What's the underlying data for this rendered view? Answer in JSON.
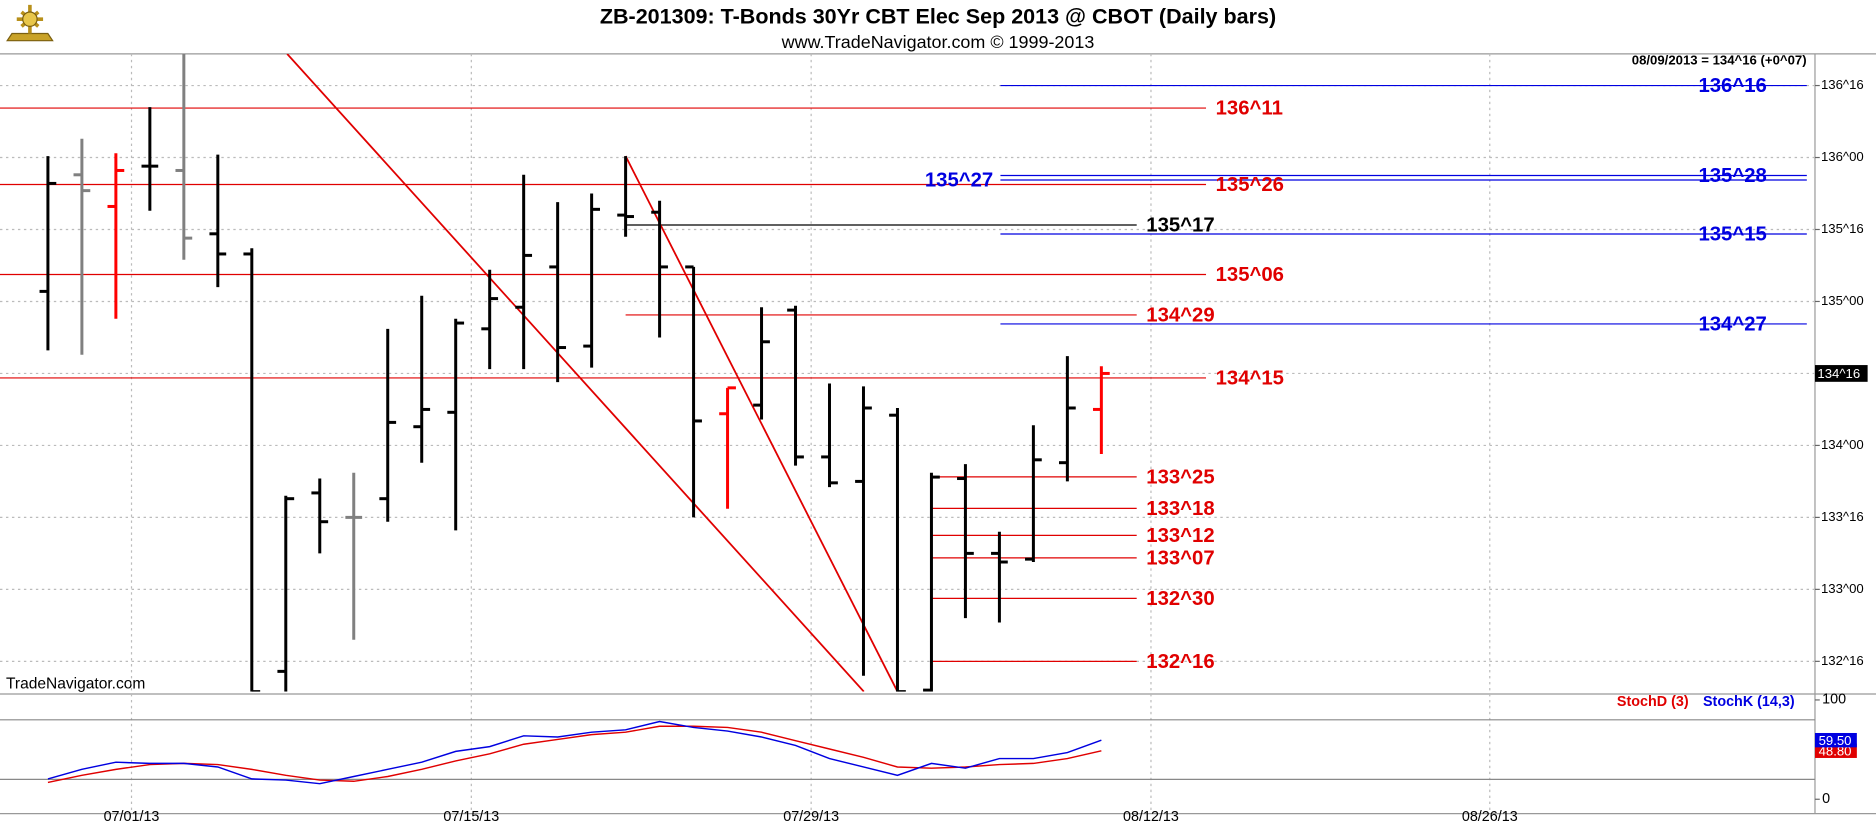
{
  "chart_data": [
    {
      "type": "ohlc",
      "title": "ZB-201309:  T-Bonds 30Yr CBT Elec Sep 2013 @ CBOT  (Daily bars)",
      "subtitle": "www.TradeNavigator.com © 1999-2013",
      "info": "08/09/2013 = 134^16 (+0^07)",
      "watermark": "TradeNavigator.com",
      "open": [
        135.07,
        135.88,
        135.66,
        135.94,
        135.91,
        135.47,
        135.33,
        132.43,
        133.67,
        133.5,
        133.63,
        134.13,
        134.23,
        134.81,
        134.96,
        135.24,
        134.69,
        135.6,
        135.62,
        135.24,
        134.22,
        134.28,
        134.94,
        133.92,
        133.75,
        134.21,
        132.3,
        133.77,
        133.25,
        133.21,
        133.88,
        134.25
      ],
      "high": [
        136.01,
        136.13,
        136.03,
        136.35,
        136.72,
        136.02,
        135.37,
        133.65,
        133.77,
        133.81,
        134.81,
        135.04,
        134.88,
        135.22,
        135.88,
        135.69,
        135.75,
        136.01,
        135.7,
        135.24,
        134.4,
        134.96,
        134.97,
        134.43,
        134.41,
        134.26,
        133.81,
        133.87,
        133.4,
        134.14,
        134.62,
        134.55
      ],
      "low": [
        134.66,
        134.63,
        134.88,
        135.63,
        135.29,
        135.1,
        132.29,
        132.29,
        133.25,
        132.65,
        133.47,
        133.88,
        133.41,
        134.53,
        134.53,
        134.44,
        134.54,
        135.45,
        134.75,
        133.5,
        133.56,
        134.18,
        133.86,
        133.71,
        132.4,
        132.29,
        132.29,
        132.8,
        132.77,
        133.19,
        133.75,
        133.94
      ],
      "close": [
        135.82,
        135.77,
        135.91,
        135.94,
        135.44,
        135.33,
        132.29,
        133.63,
        133.47,
        133.5,
        134.16,
        134.25,
        134.85,
        135.02,
        135.32,
        134.68,
        135.64,
        135.59,
        135.24,
        134.17,
        134.4,
        134.72,
        133.92,
        133.74,
        134.26,
        132.29,
        133.78,
        133.25,
        133.19,
        133.9,
        134.26,
        134.5
      ],
      "bar_colors": [
        "#000000",
        "#808080",
        "#ff0000",
        "#000000",
        "#808080",
        "#000000",
        "#000000",
        "#000000",
        "#000000",
        "#808080",
        "#000000",
        "#000000",
        "#000000",
        "#000000",
        "#000000",
        "#000000",
        "#000000",
        "#000000",
        "#000000",
        "#000000",
        "#ff0000",
        "#000000",
        "#000000",
        "#000000",
        "#000000",
        "#000000",
        "#000000",
        "#000000",
        "#000000",
        "#000000",
        "#000000",
        "#ff0000"
      ],
      "ylim": [
        132.29,
        136.72
      ],
      "yticks": [
        {
          "value": 136.5,
          "label": "136^16"
        },
        {
          "value": 136,
          "label": "136^00"
        },
        {
          "value": 135.5,
          "label": "135^16"
        },
        {
          "value": 135,
          "label": "135^00"
        },
        {
          "value": 134.5,
          "label": "134^16"
        },
        {
          "value": 134,
          "label": "134^00"
        },
        {
          "value": 133.5,
          "label": "133^16"
        },
        {
          "value": 133,
          "label": "133^00"
        },
        {
          "value": 132.5,
          "label": "132^16"
        }
      ],
      "grid": true,
      "last_price": {
        "value": 134.5,
        "label": "134^16"
      },
      "levels": [
        {
          "value": 136.34375,
          "label": "136^11",
          "color": "#e00000",
          "x_from": -1.41,
          "x_to": 34.08
        },
        {
          "value": 135.8125,
          "label": "135^26",
          "color": "#e00000",
          "x_from": -1.41,
          "x_to": 34.08
        },
        {
          "value": 135.1875,
          "label": "135^06",
          "color": "#e00000",
          "x_from": -1.41,
          "x_to": 34.08
        },
        {
          "value": 134.46875,
          "label": "134^15",
          "color": "#e00000",
          "x_from": -1.41,
          "x_to": 34.08
        },
        {
          "value": 135.53125,
          "label": "135^17",
          "color": "#000000",
          "x_from": 17,
          "x_to": 32.04
        },
        {
          "value": 134.90625,
          "label": "134^29",
          "color": "#e00000",
          "x_from": 17,
          "x_to": 32.04
        },
        {
          "value": 133.78125,
          "label": "133^25",
          "color": "#e00000",
          "x_from": 26.02,
          "x_to": 32.04
        },
        {
          "value": 133.5625,
          "label": "133^18",
          "color": "#e00000",
          "x_from": 26.02,
          "x_to": 32.04
        },
        {
          "value": 133.375,
          "label": "133^12",
          "color": "#e00000",
          "x_from": 26.02,
          "x_to": 32.04
        },
        {
          "value": 133.21875,
          "label": "133^07",
          "color": "#e00000",
          "x_from": 26.02,
          "x_to": 32.04
        },
        {
          "value": 132.9375,
          "label": "132^30",
          "color": "#e00000",
          "x_from": 26.02,
          "x_to": 32.04
        },
        {
          "value": 132.5,
          "label": "132^16",
          "color": "#e00000",
          "x_from": 26.02,
          "x_to": 32.04
        },
        {
          "value": 136.5,
          "label": "136^16",
          "color": "#0000e0",
          "x_from": 28.03,
          "x_to": 51.76
        },
        {
          "value": 135.875,
          "label": "135^28",
          "color": "#0000e0",
          "x_from": 28.03,
          "x_to": 51.76
        },
        {
          "value": 135.84375,
          "label": "135^27",
          "color": "#0000e0",
          "x_from": 28.03,
          "x_to": 51.76,
          "label_side": "left"
        },
        {
          "value": 135.46875,
          "label": "135^15",
          "color": "#0000e0",
          "x_from": 28.03,
          "x_to": 51.76
        },
        {
          "value": 134.84375,
          "label": "134^27",
          "color": "#0000e0",
          "x_from": 28.03,
          "x_to": 51.76
        }
      ],
      "trendlines": [
        {
          "x": [
            7.04,
            24.01
          ],
          "y": [
            136.72,
            132.29
          ],
          "color": "#e00000"
        },
        {
          "x": [
            17,
            25
          ],
          "y": [
            136.01,
            132.29
          ],
          "color": "#e00000"
        }
      ]
    },
    {
      "type": "line",
      "series": [
        {
          "name": "StochD (3)",
          "color": "#e00000",
          "last_label": "48.80",
          "values": [
            16.9,
            24.1,
            30.1,
            34.9,
            36.1,
            34.9,
            30.1,
            24.1,
            19.3,
            18.1,
            22.9,
            30.1,
            38.6,
            45.8,
            55.4,
            60.2,
            65.1,
            67.5,
            73.5,
            73.5,
            72.3,
            67.5,
            59,
            50.6,
            42.2,
            32.5,
            31.3,
            32.5,
            34.9,
            36.1,
            41,
            48.8
          ]
        },
        {
          "name": "StochK (14,3)",
          "color": "#0000e0",
          "last_label": "59.50",
          "values": [
            20.5,
            30.1,
            37.3,
            36.1,
            36.1,
            32.5,
            20.5,
            19.3,
            15.7,
            22.9,
            30.1,
            37.3,
            48.2,
            53,
            63.9,
            62.7,
            67.5,
            69.9,
            78.3,
            72.3,
            68.7,
            62.7,
            54.2,
            41,
            32.5,
            24.1,
            36.1,
            31.3,
            41,
            41,
            47,
            59.5
          ]
        }
      ],
      "ylim": [
        0,
        100
      ],
      "yticks": [
        0,
        100
      ],
      "levels": [
        20,
        80
      ],
      "xlim": [
        -1.41,
        52
      ],
      "xticks": [
        {
          "value": 2.46,
          "label": "07/01/13"
        },
        {
          "value": 12.46,
          "label": "07/15/13"
        },
        {
          "value": 22.46,
          "label": "07/29/13"
        },
        {
          "value": 32.46,
          "label": "08/12/13"
        },
        {
          "value": 42.43,
          "label": "08/26/13"
        }
      ]
    }
  ]
}
